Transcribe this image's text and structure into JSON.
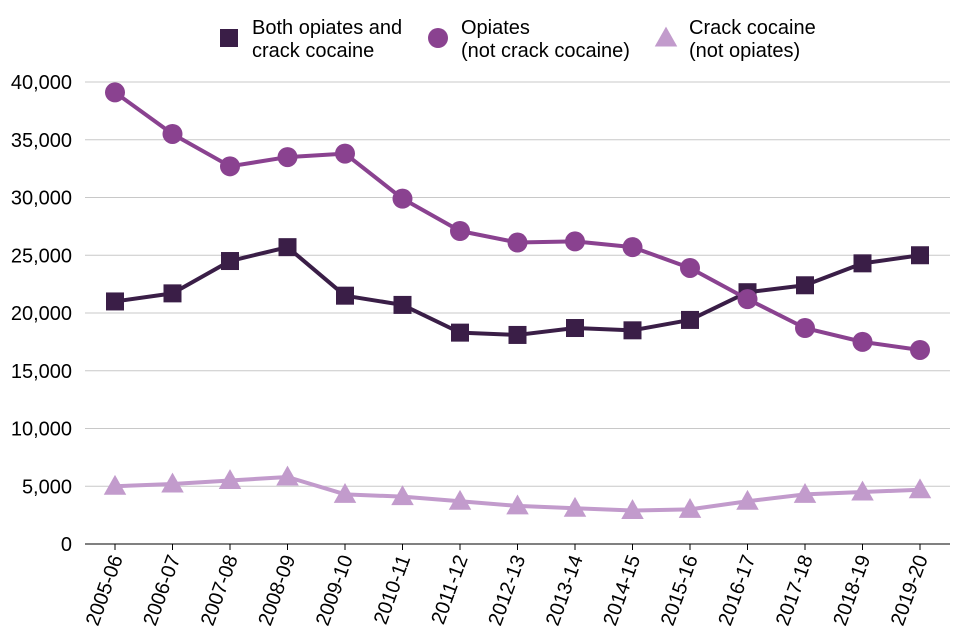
{
  "chart_data": {
    "type": "line",
    "title": "",
    "xlabel": "",
    "ylabel": "",
    "ylim": [
      0,
      40000
    ],
    "yticks": [
      0,
      5000,
      10000,
      15000,
      20000,
      25000,
      30000,
      35000,
      40000
    ],
    "ytick_labels": [
      "0",
      "5,000",
      "10,000",
      "15,000",
      "20,000",
      "25,000",
      "30,000",
      "35,000",
      "40,000"
    ],
    "grid": true,
    "legend_position": "top",
    "categories": [
      "2005-06",
      "2006-07",
      "2007-08",
      "2008-09",
      "2009-10",
      "2010-11",
      "2011-12",
      "2012-13",
      "2013-14",
      "2014-15",
      "2015-16",
      "2016-17",
      "2017-18",
      "2018-19",
      "2019-20"
    ],
    "series": [
      {
        "name": "Both opiates and crack cocaine",
        "legend_lines": [
          "Both opiates and",
          "crack cocaine"
        ],
        "marker": "square",
        "color": "#3a1e47",
        "values": [
          21000,
          21700,
          24500,
          25700,
          21500,
          20700,
          18300,
          18100,
          18700,
          18500,
          19400,
          21800,
          22400,
          24300,
          25000
        ]
      },
      {
        "name": "Opiates (not crack cocaine)",
        "legend_lines": [
          "Opiates",
          "(not crack cocaine)"
        ],
        "marker": "circle",
        "color": "#8a4290",
        "values": [
          39100,
          35500,
          32700,
          33500,
          33800,
          29900,
          27100,
          26100,
          26200,
          25700,
          23900,
          21200,
          18700,
          17500,
          16800
        ]
      },
      {
        "name": "Crack cocaine (not opiates)",
        "legend_lines": [
          "Crack cocaine",
          "(not opiates)"
        ],
        "marker": "triangle",
        "color": "#c29bcc",
        "values": [
          5000,
          5200,
          5500,
          5800,
          4300,
          4100,
          3700,
          3300,
          3100,
          2900,
          3000,
          3700,
          4300,
          4500,
          4700
        ]
      }
    ]
  }
}
